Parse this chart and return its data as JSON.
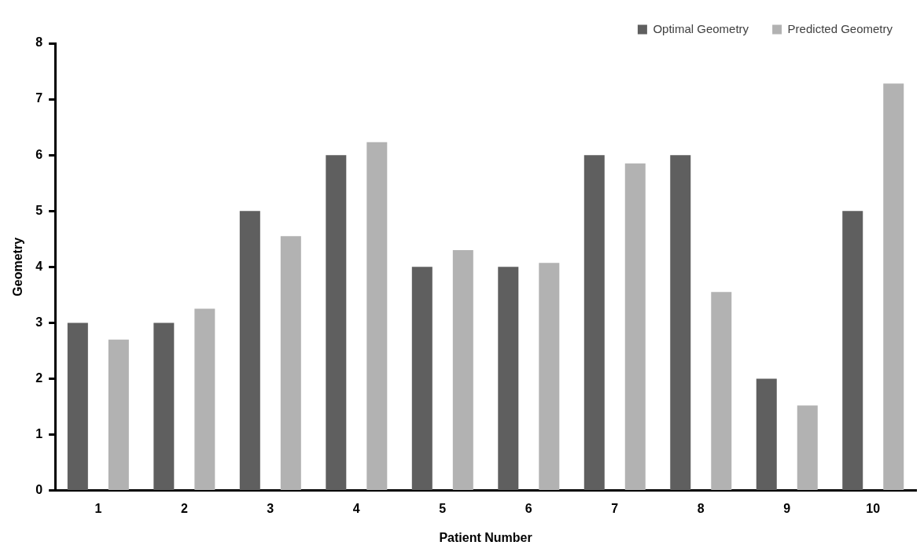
{
  "chart_data": {
    "type": "bar",
    "xlabel": "Patient Number",
    "ylabel": "Geometry",
    "categories": [
      "1",
      "2",
      "3",
      "4",
      "5",
      "6",
      "7",
      "8",
      "9",
      "10"
    ],
    "series": [
      {
        "name": "Optimal Geometry",
        "color": "#5f5f5f",
        "values": [
          3,
          3,
          5,
          6,
          4,
          4,
          6,
          6,
          2,
          5
        ]
      },
      {
        "name": "Predicted Geometry",
        "color": "#b2b2b2",
        "values": [
          2.7,
          3.25,
          4.55,
          6.23,
          4.3,
          4.07,
          5.85,
          3.55,
          1.52,
          7.28
        ]
      }
    ],
    "ylim": [
      0,
      8
    ],
    "yticks": [
      0,
      1,
      2,
      3,
      4,
      5,
      6,
      7,
      8
    ],
    "grid": false,
    "legend": "top right"
  }
}
